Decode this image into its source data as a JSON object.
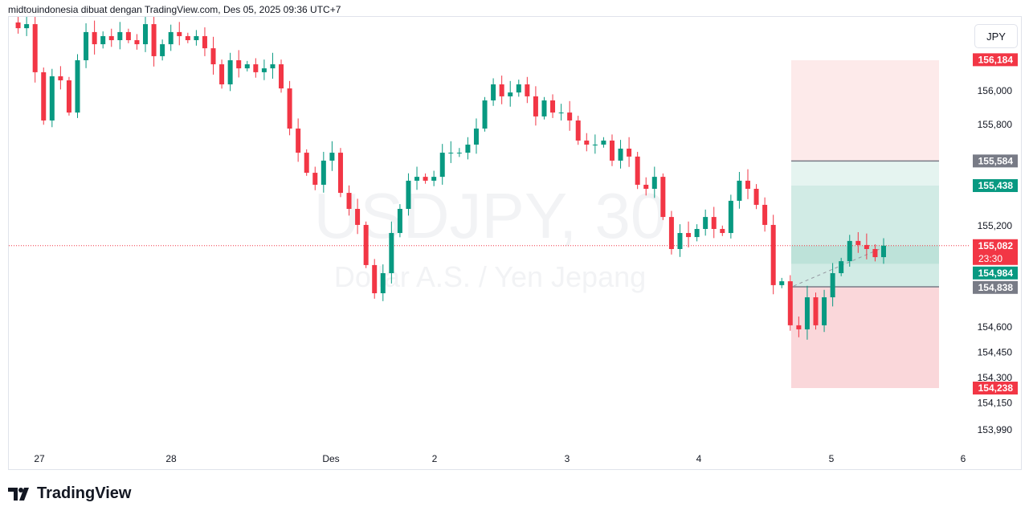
{
  "header": {
    "title": "midtouindonesia dibuat dengan TradingView.com, Des 05, 2025 09:36 UTC+7"
  },
  "currency_button": "JPY",
  "logo_text": "TradingView",
  "chart_data": {
    "type": "candlestick",
    "symbol_watermark": "USDJPY, 30",
    "description_watermark": "Dollar A.S. / Yen Jepang",
    "colors": {
      "up": "#089981",
      "down": "#f23645"
    },
    "y_range": [
      153.92,
      156.44
    ],
    "y_ticks": [
      {
        "v": 156.0,
        "label": "156,000"
      },
      {
        "v": 155.8,
        "label": "155,800"
      },
      {
        "v": 155.2,
        "label": "155,200"
      },
      {
        "v": 154.6,
        "label": "154,600"
      },
      {
        "v": 154.45,
        "label": "154,450"
      },
      {
        "v": 154.3,
        "label": "154,300"
      },
      {
        "v": 154.15,
        "label": "154,150"
      },
      {
        "v": 153.99,
        "label": "153,990"
      }
    ],
    "x_ticks": [
      "27",
      "28",
      "Des",
      "2",
      "3",
      "4",
      "5",
      "6"
    ],
    "closes": [
      156.405,
      156.371,
      156.395,
      156.11,
      155.824,
      156.086,
      156.062,
      155.871,
      156.181,
      156.348,
      156.276,
      156.324,
      156.3,
      156.348,
      156.3,
      156.276,
      156.395,
      156.205,
      156.276,
      156.348,
      156.324,
      156.3,
      156.324,
      156.252,
      156.157,
      156.038,
      156.181,
      156.133,
      156.157,
      156.11,
      156.133,
      156.157,
      156.014,
      155.776,
      155.633,
      155.514,
      155.443,
      155.586,
      155.633,
      155.395,
      155.3,
      155.205,
      154.967,
      154.8,
      154.919,
      155.157,
      155.3,
      155.467,
      155.49,
      155.467,
      155.49,
      155.633,
      155.633,
      155.633,
      155.681,
      155.776,
      155.943,
      156.038,
      155.967,
      155.99,
      156.038,
      155.967,
      155.848,
      155.943,
      155.871,
      155.871,
      155.824,
      155.705,
      155.681,
      155.681,
      155.705,
      155.586,
      155.657,
      155.61,
      155.443,
      155.419,
      155.49,
      155.252,
      155.062,
      155.157,
      155.133,
      155.181,
      155.252,
      155.181,
      155.157,
      155.348,
      155.467,
      155.419,
      155.324,
      155.205,
      154.848,
      154.871,
      154.61,
      154.586,
      154.776,
      154.61,
      154.776,
      154.919,
      154.99,
      155.11,
      155.086,
      155.062,
      155.014,
      155.082
    ],
    "current_price": {
      "label": "155,082",
      "countdown": "23:30",
      "value": 155.082
    },
    "position": {
      "stop_loss": {
        "label": "156,184",
        "value": 156.184
      },
      "target_upper": {
        "label": "155,584",
        "value": 155.584
      },
      "entry_upper": {
        "label": "155,438",
        "value": 155.438
      },
      "bid": {
        "label": "154,984",
        "value": 154.984
      },
      "entry_lower": {
        "label": "154,838",
        "value": 154.838
      },
      "target_lower": {
        "label": "154,238",
        "value": 154.238
      }
    }
  }
}
